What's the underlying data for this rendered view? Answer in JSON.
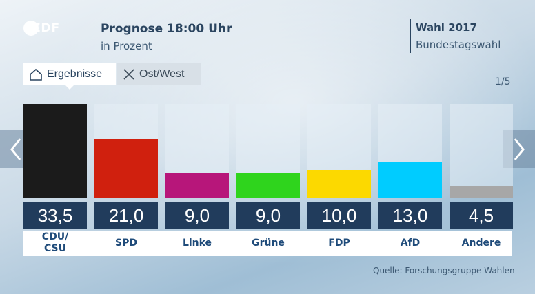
{
  "header": {
    "logo_text": "ZDF",
    "title": "Prognose 18:00 Uhr",
    "subtitle": "in Prozent",
    "election_title": "Wahl 2017",
    "election_subtitle": "Bundestagswahl"
  },
  "tabs": [
    {
      "label": "Ergebnisse",
      "icon": "home-icon",
      "active": true
    },
    {
      "label": "Ost/West",
      "icon": "close-icon",
      "active": false
    }
  ],
  "pager": "1/5",
  "navigation": {
    "prev_icon": "chevron-left-icon",
    "next_icon": "chevron-right-icon"
  },
  "source": "Quelle: Forschungsgruppe Wahlen",
  "chart_data": {
    "type": "bar",
    "categories": [
      "CDU/\nCSU",
      "SPD",
      "Linke",
      "Grüne",
      "FDP",
      "AfD",
      "Andere"
    ],
    "values": [
      33.5,
      21.0,
      9.0,
      9.0,
      10.0,
      13.0,
      4.5
    ],
    "value_labels": [
      "33,5",
      "21,0",
      "9,0",
      "9,0",
      "10,0",
      "13,0",
      "4,5"
    ],
    "colors": [
      "#1b1b1b",
      "#d0200e",
      "#b7167a",
      "#2fd41d",
      "#fcd900",
      "#00ccff",
      "#a7a7a7"
    ],
    "ylim": [
      0,
      33.5
    ],
    "grid": false
  }
}
